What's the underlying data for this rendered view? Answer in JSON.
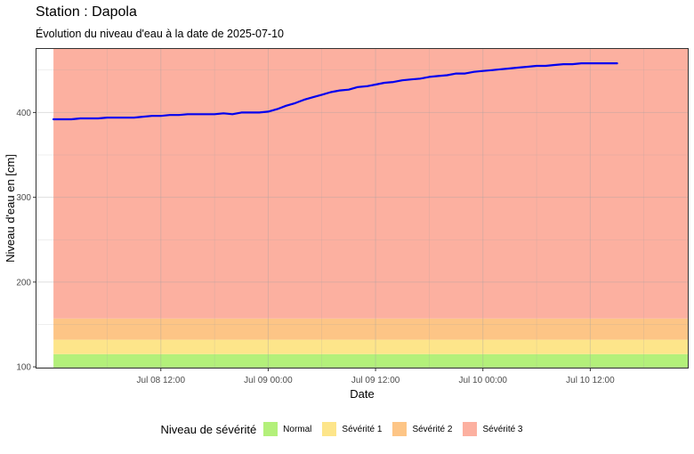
{
  "header": {
    "title": "Station : Dapola",
    "subtitle": "Évolution du niveau d'eau à la date de 2025-07-10"
  },
  "chart_data": {
    "type": "line",
    "xlabel": "Date",
    "ylabel": "Niveau d'eau en [cm]",
    "x_range": [
      "2025-07-07T22:00",
      "2025-07-10T23:00"
    ],
    "ylim": [
      98,
      476
    ],
    "x_ticks": [
      {
        "label": "Jul 08 12:00",
        "value": "2025-07-08T12:00"
      },
      {
        "label": "Jul 09 00:00",
        "value": "2025-07-09T00:00"
      },
      {
        "label": "Jul 09 12:00",
        "value": "2025-07-09T12:00"
      },
      {
        "label": "Jul 10 00:00",
        "value": "2025-07-10T00:00"
      },
      {
        "label": "Jul 10 12:00",
        "value": "2025-07-10T12:00"
      }
    ],
    "y_ticks": [
      100,
      200,
      300,
      400
    ],
    "grid": true,
    "bands": [
      {
        "name": "Normal",
        "from": 98,
        "to": 115,
        "color": "#b3f07a"
      },
      {
        "name": "Sévérité 1",
        "from": 115,
        "to": 132,
        "color": "#fde58a"
      },
      {
        "name": "Sévérité 2",
        "from": 132,
        "to": 157,
        "color": "#fdc586"
      },
      {
        "name": "Sévérité 3",
        "from": 157,
        "to": 476,
        "color": "#fcb0a0"
      }
    ],
    "band_x_range": [
      "2025-07-08T00:00",
      "2025-07-10T23:00"
    ],
    "series": [
      {
        "color": "#0000ee",
        "x": [
          "2025-07-08T00:00",
          "2025-07-08T01:00",
          "2025-07-08T02:00",
          "2025-07-08T03:00",
          "2025-07-08T04:00",
          "2025-07-08T05:00",
          "2025-07-08T06:00",
          "2025-07-08T07:00",
          "2025-07-08T08:00",
          "2025-07-08T09:00",
          "2025-07-08T10:00",
          "2025-07-08T11:00",
          "2025-07-08T12:00",
          "2025-07-08T13:00",
          "2025-07-08T14:00",
          "2025-07-08T15:00",
          "2025-07-08T16:00",
          "2025-07-08T17:00",
          "2025-07-08T18:00",
          "2025-07-08T19:00",
          "2025-07-08T20:00",
          "2025-07-08T21:00",
          "2025-07-08T22:00",
          "2025-07-08T23:00",
          "2025-07-09T00:00",
          "2025-07-09T01:00",
          "2025-07-09T02:00",
          "2025-07-09T03:00",
          "2025-07-09T04:00",
          "2025-07-09T05:00",
          "2025-07-09T06:00",
          "2025-07-09T07:00",
          "2025-07-09T08:00",
          "2025-07-09T09:00",
          "2025-07-09T10:00",
          "2025-07-09T11:00",
          "2025-07-09T12:00",
          "2025-07-09T13:00",
          "2025-07-09T14:00",
          "2025-07-09T15:00",
          "2025-07-09T16:00",
          "2025-07-09T17:00",
          "2025-07-09T18:00",
          "2025-07-09T19:00",
          "2025-07-09T20:00",
          "2025-07-09T21:00",
          "2025-07-09T22:00",
          "2025-07-09T23:00",
          "2025-07-10T00:00",
          "2025-07-10T01:00",
          "2025-07-10T02:00",
          "2025-07-10T03:00",
          "2025-07-10T04:00",
          "2025-07-10T05:00",
          "2025-07-10T06:00",
          "2025-07-10T07:00",
          "2025-07-10T08:00",
          "2025-07-10T09:00",
          "2025-07-10T10:00",
          "2025-07-10T11:00",
          "2025-07-10T12:00",
          "2025-07-10T13:00",
          "2025-07-10T14:00",
          "2025-07-10T15:00"
        ],
        "y": [
          392,
          392,
          392,
          393,
          393,
          393,
          394,
          394,
          394,
          394,
          395,
          396,
          396,
          397,
          397,
          398,
          398,
          398,
          398,
          399,
          398,
          400,
          400,
          400,
          401,
          404,
          408,
          411,
          415,
          418,
          421,
          424,
          426,
          427,
          430,
          431,
          433,
          435,
          436,
          438,
          439,
          440,
          442,
          443,
          444,
          446,
          446,
          448,
          449,
          450,
          451,
          452,
          453,
          454,
          455,
          455,
          456,
          457,
          457,
          458,
          458,
          458,
          458,
          458
        ]
      }
    ],
    "legend": {
      "title": "Niveau de sévérité",
      "position": "bottom",
      "items": [
        {
          "label": "Normal",
          "color": "#b3f07a"
        },
        {
          "label": "Sévérité 1",
          "color": "#fde58a"
        },
        {
          "label": "Sévérité 2",
          "color": "#fdc586"
        },
        {
          "label": "Sévérité 3",
          "color": "#fcb0a0"
        }
      ]
    }
  }
}
